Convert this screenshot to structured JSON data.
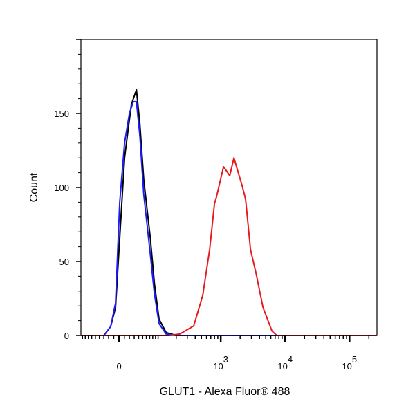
{
  "chart_data": {
    "type": "line",
    "title": "",
    "xlabel": "GLUT1 - Alexa Fluor® 488",
    "ylabel": "Count",
    "x_scale": "biexponential",
    "xlim": [
      -96,
      267000
    ],
    "ylim": [
      0,
      200
    ],
    "grid": false,
    "legend": "none",
    "x_ticks": [
      {
        "value": 0,
        "base": "0",
        "exp": ""
      },
      {
        "value": 1000,
        "base": "10",
        "exp": "3"
      },
      {
        "value": 10000,
        "base": "10",
        "exp": "4"
      },
      {
        "value": 100000,
        "base": "10",
        "exp": "5"
      }
    ],
    "y_ticks": [
      {
        "value": 0,
        "label": "0"
      },
      {
        "value": 50,
        "label": "50"
      },
      {
        "value": 100,
        "label": "100"
      },
      {
        "value": 150,
        "label": "150"
      }
    ],
    "series": [
      {
        "name": "black",
        "color": "#000000",
        "x": [
          -96,
          -30,
          -16,
          -6.5,
          1.3,
          10.5,
          24,
          35,
          43,
          53,
          72,
          86,
          104,
          137,
          201,
          267000
        ],
        "y": [
          0,
          0,
          6,
          19,
          66,
          120,
          156,
          166,
          143,
          105,
          66,
          35,
          11,
          2,
          0,
          0
        ]
      },
      {
        "name": "blue",
        "color": "#1a1aff",
        "x": [
          -96,
          -30,
          -16,
          -6.5,
          1.3,
          10.5,
          20,
          28,
          35,
          43,
          53,
          72,
          86,
          104,
          137,
          201,
          267000
        ],
        "y": [
          0,
          0,
          6,
          22,
          90,
          130,
          150,
          158,
          158,
          135,
          95,
          55,
          28,
          8,
          1,
          0,
          0
        ]
      },
      {
        "name": "red",
        "color": "#e8191c",
        "x": [
          -96,
          150,
          229,
          379,
          524,
          672,
          798,
          862,
          1104,
          1379,
          1600,
          2154,
          2436,
          2898,
          3536,
          4526,
          6245,
          7430,
          267000
        ],
        "y": [
          0,
          0,
          1,
          6.5,
          27,
          58,
          89,
          94,
          114,
          108,
          120,
          101,
          92,
          58,
          42,
          19,
          3,
          0,
          0
        ]
      }
    ]
  }
}
